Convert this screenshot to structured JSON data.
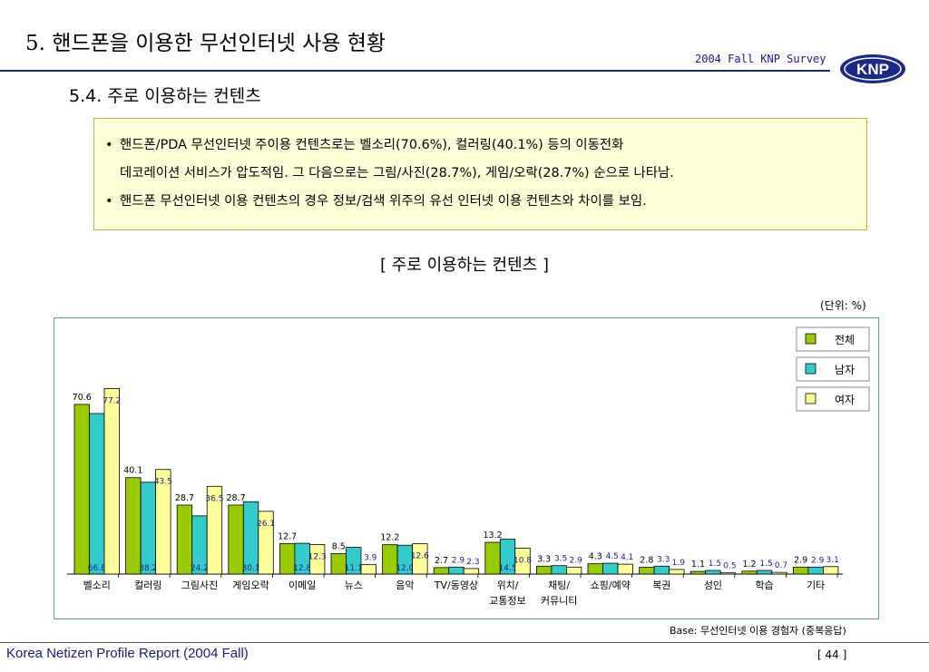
{
  "header": {
    "title": "5. 핸드폰을 이용한 무선인터넷 사용 현황",
    "survey": "2004 Fall KNP Survey",
    "logo_text": "KNP"
  },
  "section_title": "5.4. 주로 이용하는 컨텐츠",
  "summary": {
    "bullet1_line1": "핸드폰/PDA 무선인터넷 주이용 컨텐츠로는 벨소리(70.6%), 컬러링(40.1%) 등의 이동전화",
    "bullet1_line2": "데코레이션 서비스가 압도적임. 그 다음으로는 그림/사진(28.7%), 게임/오락(28.7%) 순으로 나타남.",
    "bullet2": "핸드폰 무선인터넷 이용 컨텐츠의 경우 정보/검색 위주의 유선 인터넷 이용 컨텐츠와 차이를 보임.",
    "bullet_symbol": "•"
  },
  "chart_title": "[ 주로 이용하는 컨텐츠 ]",
  "unit": "(단위: %)",
  "base_note": "Base: 무선인터넷 이용 경험자 (중복응답)",
  "footer": {
    "report": "Korea Netizen Profile Report (2004 Fall)",
    "page": "[ 44 ]"
  },
  "colors": {
    "total": "#99cc00",
    "male": "#33cccc",
    "female": "#ffff99",
    "accent": "#1a2a8c"
  },
  "chart_data": {
    "type": "bar",
    "categories": [
      "벨소리",
      "컬러링",
      "그림사진",
      "게임오락",
      "이메일",
      "뉴스",
      "음악",
      "TV/동영상",
      "위치/\n교통정보",
      "채팅/\n커뮤니티",
      "쇼핑/예약",
      "복권",
      "성인",
      "학습",
      "기타"
    ],
    "series": [
      {
        "name": "전체",
        "values": [
          70.6,
          40.1,
          28.7,
          28.7,
          12.7,
          8.5,
          12.2,
          2.7,
          13.2,
          3.3,
          4.3,
          2.8,
          1.1,
          1.2,
          2.9
        ]
      },
      {
        "name": "남자",
        "values": [
          66.8,
          38.2,
          24.2,
          30.1,
          12.8,
          11.1,
          12.0,
          2.9,
          14.5,
          3.5,
          4.5,
          3.3,
          1.5,
          1.5,
          2.9
        ]
      },
      {
        "name": "여자",
        "values": [
          77.2,
          43.5,
          36.5,
          26.1,
          12.3,
          3.9,
          12.6,
          2.3,
          10.8,
          2.9,
          4.1,
          1.9,
          0.5,
          0.7,
          3.1
        ]
      }
    ],
    "ylim": [
      0,
      80
    ],
    "legend": "right"
  }
}
